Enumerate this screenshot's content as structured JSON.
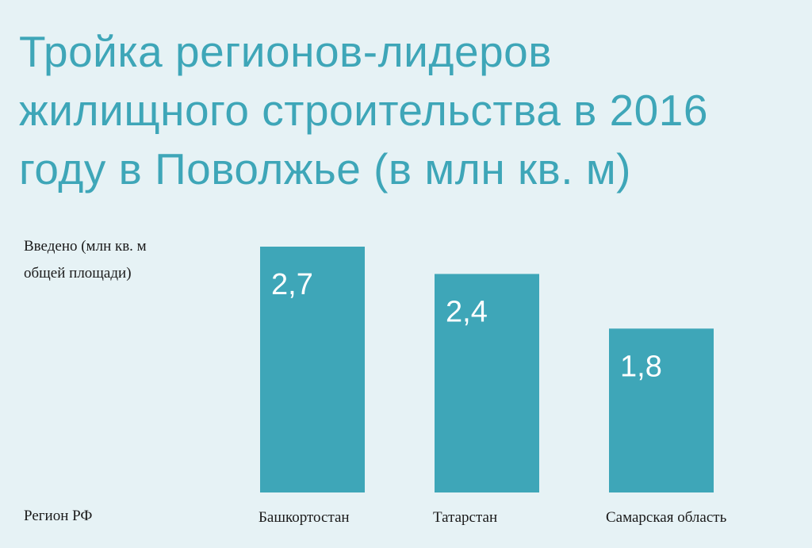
{
  "chart_data": {
    "type": "bar",
    "title_lines": [
      "Тройка регионов-лидеров",
      "жилищного строительства в 2016",
      "году в Поволжье (в млн кв. м)"
    ],
    "ylabel_lines": [
      "Введено (млн кв. м",
      "общей площади)"
    ],
    "xlabel": "Регион РФ",
    "categories": [
      "Башкортостан",
      "Татарстан",
      "Самарская область"
    ],
    "values": [
      2.7,
      2.4,
      1.8
    ],
    "value_labels": [
      "2,7",
      "2,4",
      "1,8"
    ],
    "ylim": [
      0,
      2.7
    ],
    "bar_color": "#3ea6b8",
    "text_color": "#3ea6b8",
    "background": "#e6f2f5"
  }
}
